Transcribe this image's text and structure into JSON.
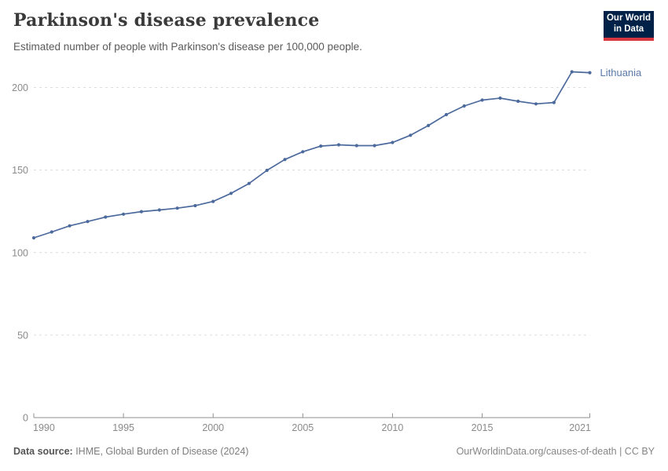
{
  "header": {
    "title": "Parkinson's disease prevalence",
    "subtitle": "Estimated number of people with Parkinson's disease per 100,000 people."
  },
  "logo": {
    "line1": "Our World",
    "line2": "in Data",
    "bg": "#002147",
    "bar_color": "#d7383f"
  },
  "entity_label": "Lithuania",
  "footer": {
    "source_label": "Data source:",
    "source_text": " IHME, Global Burden of Disease (2024)",
    "right_text": "OurWorldinData.org/causes-of-death | CC BY"
  },
  "colors": {
    "line": "#4C6A9C",
    "entity_label": "#5b7aa8",
    "grid": "#dcdcdc",
    "axis": "#8f8f8f",
    "tick_label": "#8a8a8a"
  },
  "chart_data": {
    "type": "line",
    "title": "Parkinson's disease prevalence",
    "subtitle": "Estimated number of people with Parkinson's disease per 100,000 people.",
    "xlabel": "",
    "ylabel": "",
    "xlim": [
      1990,
      2021
    ],
    "ylim": [
      0,
      200
    ],
    "grid": "horizontal-dashed",
    "legend_position": "end-of-line-label",
    "x_ticks": [
      1990,
      1995,
      2000,
      2005,
      2010,
      2015,
      2021
    ],
    "y_ticks": [
      0,
      50,
      100,
      150,
      200
    ],
    "x": [
      1990,
      1991,
      1992,
      1993,
      1994,
      1995,
      1996,
      1997,
      1998,
      1999,
      2000,
      2001,
      2002,
      2003,
      2004,
      2005,
      2006,
      2007,
      2008,
      2009,
      2010,
      2011,
      2012,
      2013,
      2014,
      2015,
      2016,
      2017,
      2018,
      2019,
      2020,
      2021
    ],
    "series": [
      {
        "name": "Lithuania",
        "color": "#4C6A9C",
        "values": [
          108.9,
          112.5,
          116.2,
          118.8,
          121.5,
          123.3,
          124.8,
          125.8,
          126.9,
          128.4,
          131.0,
          135.9,
          141.9,
          149.8,
          156.4,
          161.1,
          164.5,
          165.3,
          164.8,
          164.8,
          166.7,
          171.1,
          177.0,
          183.6,
          188.8,
          192.4,
          193.6,
          191.7,
          190.1,
          190.9,
          209.5,
          209.0
        ]
      }
    ]
  }
}
